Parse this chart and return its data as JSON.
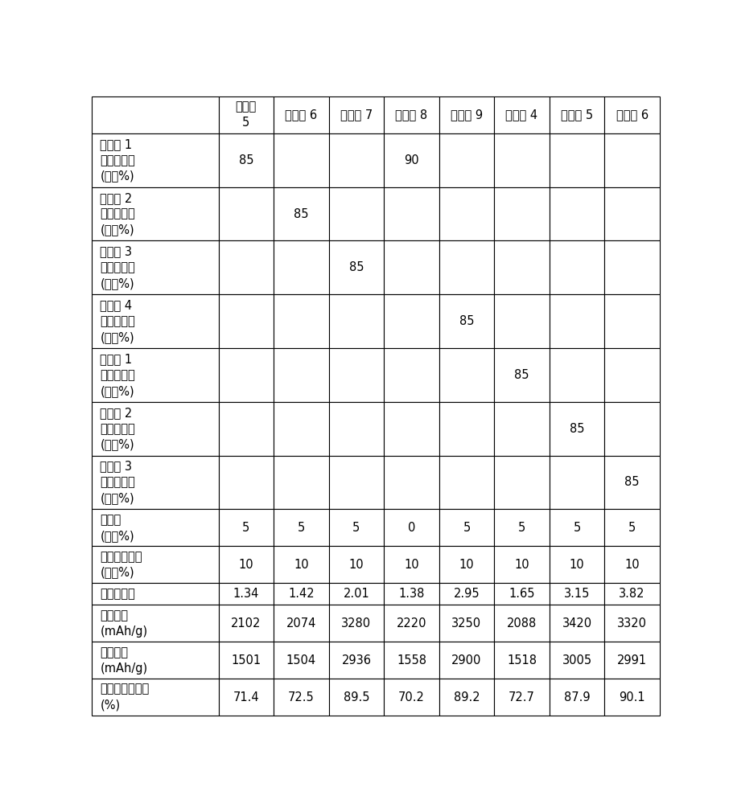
{
  "col_headers": [
    "",
    "实施例\n5",
    "实施例 6",
    "实施例 7",
    "实施例 8",
    "实施例 9",
    "比较例 4",
    "比较例 5",
    "比较例 6"
  ],
  "row_labels": [
    "实施例 1\n氧化硅粉末\n(质量%)",
    "实施例 2\n氧化硅粉末\n(质量%)",
    "实施例 3\n多晶硅粉末\n(质量%)",
    "实施例 4\n多晶硅粉末\n(质量%)",
    "比较例 1\n氧化硅粉末\n(质量%)",
    "比较例 2\n多晶硅粉末\n(质量%)",
    "比较例 3\n多晶硅粉末\n(质量%)",
    "乙倶黑\n(质量%)",
    "聚酰亚胺树脂\n(质量%)",
    "体积膊脹率",
    "充电容量\n(mAh/g)",
    "放电容量\n(mAh/g)",
    "初次充放电效率\n(%)"
  ],
  "table_data": [
    [
      "85",
      "",
      "",
      "90",
      "",
      "",
      "",
      ""
    ],
    [
      "",
      "85",
      "",
      "",
      "",
      "",
      "",
      ""
    ],
    [
      "",
      "",
      "85",
      "",
      "",
      "",
      "",
      ""
    ],
    [
      "",
      "",
      "",
      "",
      "85",
      "",
      "",
      ""
    ],
    [
      "",
      "",
      "",
      "",
      "",
      "85",
      "",
      ""
    ],
    [
      "",
      "",
      "",
      "",
      "",
      "",
      "85",
      ""
    ],
    [
      "",
      "",
      "",
      "",
      "",
      "",
      "",
      "85"
    ],
    [
      "5",
      "5",
      "5",
      "0",
      "5",
      "5",
      "5",
      "5"
    ],
    [
      "10",
      "10",
      "10",
      "10",
      "10",
      "10",
      "10",
      "10"
    ],
    [
      "1.34",
      "1.42",
      "2.01",
      "1.38",
      "2.95",
      "1.65",
      "3.15",
      "3.82"
    ],
    [
      "2102",
      "2074",
      "3280",
      "2220",
      "3250",
      "2088",
      "3420",
      "3320"
    ],
    [
      "1501",
      "1504",
      "2936",
      "1558",
      "2900",
      "1518",
      "3005",
      "2991"
    ],
    [
      "71.4",
      "72.5",
      "89.5",
      "70.2",
      "89.2",
      "72.7",
      "87.9",
      "90.1"
    ]
  ],
  "background_color": "#ffffff",
  "line_color": "#000000",
  "text_color": "#000000",
  "font_size": 10.5,
  "header_font_size": 10.5,
  "row_heights": [
    2.2,
    3.2,
    3.2,
    3.2,
    3.2,
    3.2,
    3.2,
    3.2,
    2.2,
    2.2,
    1.3,
    2.2,
    2.2,
    2.2
  ],
  "col_widths": [
    2.3,
    1.0,
    1.0,
    1.0,
    1.0,
    1.0,
    1.0,
    1.0,
    1.0
  ]
}
